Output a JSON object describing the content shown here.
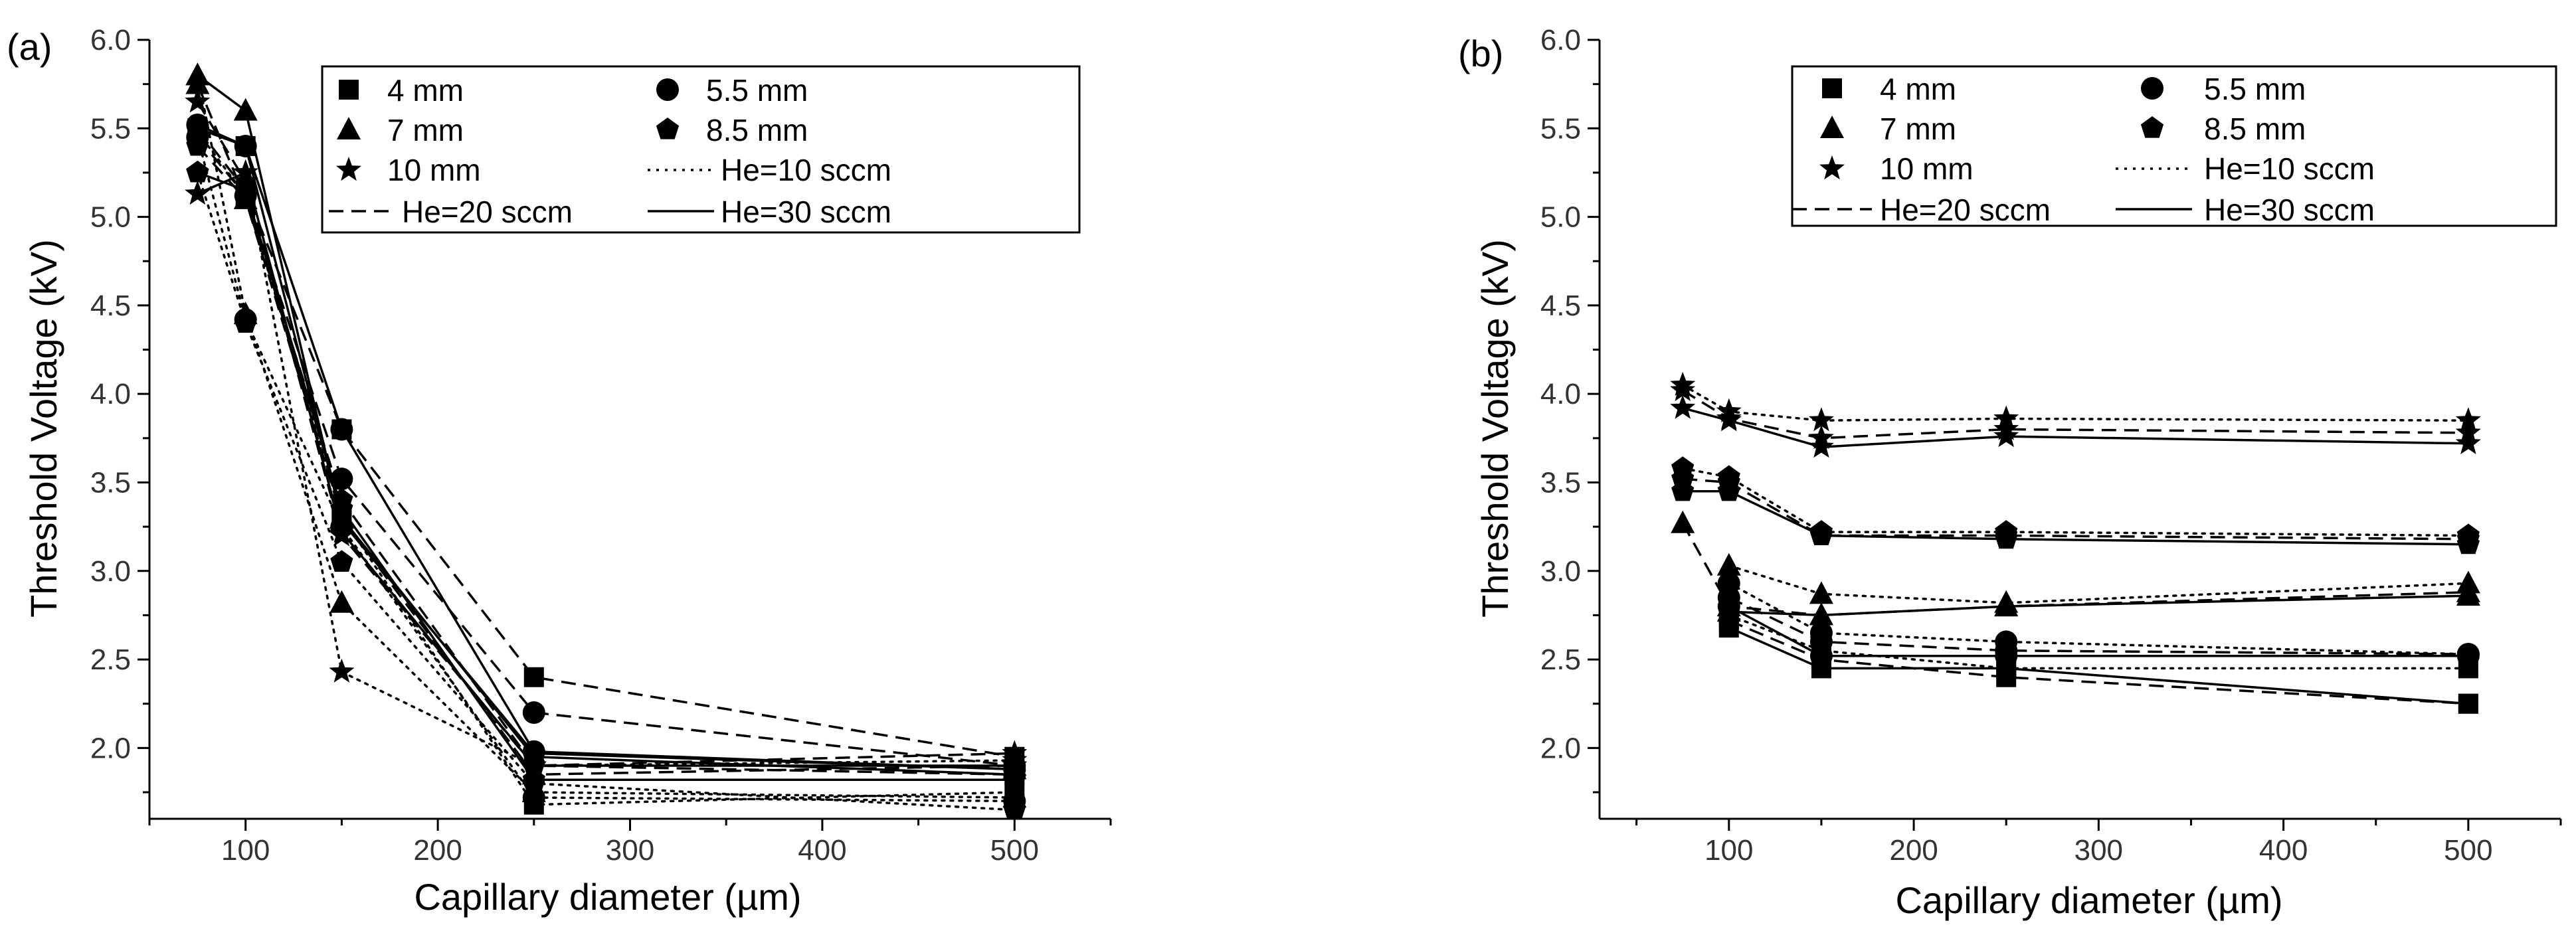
{
  "chart_data": [
    {
      "panel": "(a)",
      "type": "line",
      "xlabel": "Capillary diameter (µm)",
      "ylabel": "Threshold Voltage (kV)",
      "xlim": [
        50,
        550
      ],
      "ylim": [
        1.6,
        6.0
      ],
      "xticks": [
        100,
        200,
        300,
        400,
        500
      ],
      "yticks": [
        2.0,
        2.5,
        3.0,
        3.5,
        4.0,
        4.5,
        5.0,
        5.5,
        6.0
      ],
      "x": [
        75,
        100,
        150,
        250,
        500
      ],
      "legend": {
        "position": "top-right",
        "entries": [
          {
            "label": "4 mm",
            "marker": "square"
          },
          {
            "label": "5.5 mm",
            "marker": "circle"
          },
          {
            "label": "7 mm",
            "marker": "triangle"
          },
          {
            "label": "8.5 mm",
            "marker": "pentagon"
          },
          {
            "label": "10 mm",
            "marker": "star"
          },
          {
            "label": "He=10 sccm",
            "dash": "dotted"
          },
          {
            "label": "He=20 sccm",
            "dash": "dashed"
          },
          {
            "label": "He=30 sccm",
            "dash": "solid"
          }
        ]
      },
      "series": [
        {
          "marker": "square",
          "dash": "dotted",
          "values": [
            5.48,
            5.12,
            3.31,
            1.68,
            1.75
          ]
        },
        {
          "marker": "square",
          "dash": "dashed",
          "values": [
            5.5,
            5.15,
            3.8,
            2.4,
            1.95
          ]
        },
        {
          "marker": "square",
          "dash": "solid",
          "values": [
            5.5,
            5.4,
            3.3,
            1.95,
            1.85
          ]
        },
        {
          "marker": "circle",
          "dash": "dotted",
          "values": [
            5.45,
            4.42,
            3.25,
            1.72,
            1.7
          ]
        },
        {
          "marker": "circle",
          "dash": "dashed",
          "values": [
            5.45,
            5.12,
            3.52,
            2.2,
            1.9
          ]
        },
        {
          "marker": "circle",
          "dash": "solid",
          "values": [
            5.52,
            5.4,
            3.8,
            1.98,
            1.88
          ]
        },
        {
          "marker": "triangle",
          "dash": "dotted",
          "values": [
            5.8,
            4.45,
            2.82,
            1.75,
            1.72
          ]
        },
        {
          "marker": "triangle",
          "dash": "dashed",
          "values": [
            5.75,
            5.1,
            3.3,
            1.85,
            1.9
          ]
        },
        {
          "marker": "triangle",
          "dash": "solid",
          "values": [
            5.8,
            5.6,
            3.28,
            1.97,
            1.88
          ]
        },
        {
          "marker": "pentagon",
          "dash": "dotted",
          "values": [
            5.25,
            4.4,
            3.05,
            1.8,
            1.65
          ]
        },
        {
          "marker": "pentagon",
          "dash": "dashed",
          "values": [
            5.4,
            5.1,
            3.4,
            1.9,
            1.85
          ]
        },
        {
          "marker": "pentagon",
          "dash": "solid",
          "values": [
            5.25,
            5.15,
            3.35,
            1.82,
            1.82
          ]
        },
        {
          "marker": "star",
          "dash": "dotted",
          "values": [
            5.13,
            5.25,
            2.43,
            1.9,
            1.93
          ]
        },
        {
          "marker": "star",
          "dash": "dashed",
          "values": [
            5.65,
            5.2,
            3.2,
            1.9,
            1.97
          ]
        },
        {
          "marker": "star",
          "dash": "solid",
          "values": [
            5.13,
            5.25,
            3.22,
            1.9,
            1.9
          ]
        }
      ]
    },
    {
      "panel": "(b)",
      "type": "line",
      "xlabel": "Capillary diameter (µm)",
      "ylabel": "Threshold Voltage (kV)",
      "xlim": [
        30,
        550
      ],
      "ylim": [
        1.6,
        6.0
      ],
      "xticks": [
        100,
        200,
        300,
        400,
        500
      ],
      "yticks": [
        2.0,
        2.5,
        3.0,
        3.5,
        4.0,
        4.5,
        5.0,
        5.5,
        6.0
      ],
      "x": [
        75,
        100,
        150,
        250,
        500
      ],
      "legend": {
        "position": "top-right",
        "entries": [
          {
            "label": "4 mm",
            "marker": "square"
          },
          {
            "label": "5.5 mm",
            "marker": "circle"
          },
          {
            "label": "7 mm",
            "marker": "triangle"
          },
          {
            "label": "8.5 mm",
            "marker": "pentagon"
          },
          {
            "label": "10 mm",
            "marker": "star"
          },
          {
            "label": "He=10 sccm",
            "dash": "dotted"
          },
          {
            "label": "He=20 sccm",
            "dash": "dashed"
          },
          {
            "label": "He=30 sccm",
            "dash": "solid"
          }
        ]
      },
      "series": [
        {
          "marker": "square",
          "dash": "dotted",
          "values": [
            null,
            2.75,
            2.55,
            2.45,
            2.45
          ]
        },
        {
          "marker": "square",
          "dash": "dashed",
          "values": [
            null,
            2.72,
            2.5,
            2.4,
            2.25
          ]
        },
        {
          "marker": "square",
          "dash": "solid",
          "values": [
            null,
            2.68,
            2.45,
            2.45,
            2.25
          ]
        },
        {
          "marker": "circle",
          "dash": "dotted",
          "values": [
            null,
            2.93,
            2.65,
            2.6,
            2.53
          ]
        },
        {
          "marker": "circle",
          "dash": "dashed",
          "values": [
            null,
            2.85,
            2.6,
            2.55,
            2.53
          ]
        },
        {
          "marker": "circle",
          "dash": "solid",
          "values": [
            null,
            2.8,
            2.52,
            2.52,
            2.52
          ]
        },
        {
          "marker": "triangle",
          "dash": "dotted",
          "values": [
            null,
            3.03,
            2.87,
            2.82,
            2.93
          ]
        },
        {
          "marker": "triangle",
          "dash": "dashed",
          "values": [
            3.27,
            2.8,
            2.75,
            2.8,
            2.88
          ]
        },
        {
          "marker": "triangle",
          "dash": "solid",
          "values": [
            null,
            2.77,
            2.75,
            2.8,
            2.86
          ]
        },
        {
          "marker": "pentagon",
          "dash": "dotted",
          "values": [
            3.58,
            3.53,
            3.22,
            3.22,
            3.2
          ]
        },
        {
          "marker": "pentagon",
          "dash": "dashed",
          "values": [
            3.52,
            3.5,
            3.2,
            3.2,
            3.18
          ]
        },
        {
          "marker": "pentagon",
          "dash": "solid",
          "values": [
            3.45,
            3.45,
            3.2,
            3.18,
            3.15
          ]
        },
        {
          "marker": "star",
          "dash": "dotted",
          "values": [
            4.05,
            3.9,
            3.85,
            3.86,
            3.85
          ]
        },
        {
          "marker": "star",
          "dash": "dashed",
          "values": [
            4.02,
            3.86,
            3.75,
            3.8,
            3.78
          ]
        },
        {
          "marker": "star",
          "dash": "solid",
          "values": [
            3.92,
            3.85,
            3.7,
            3.76,
            3.72
          ]
        }
      ]
    }
  ]
}
